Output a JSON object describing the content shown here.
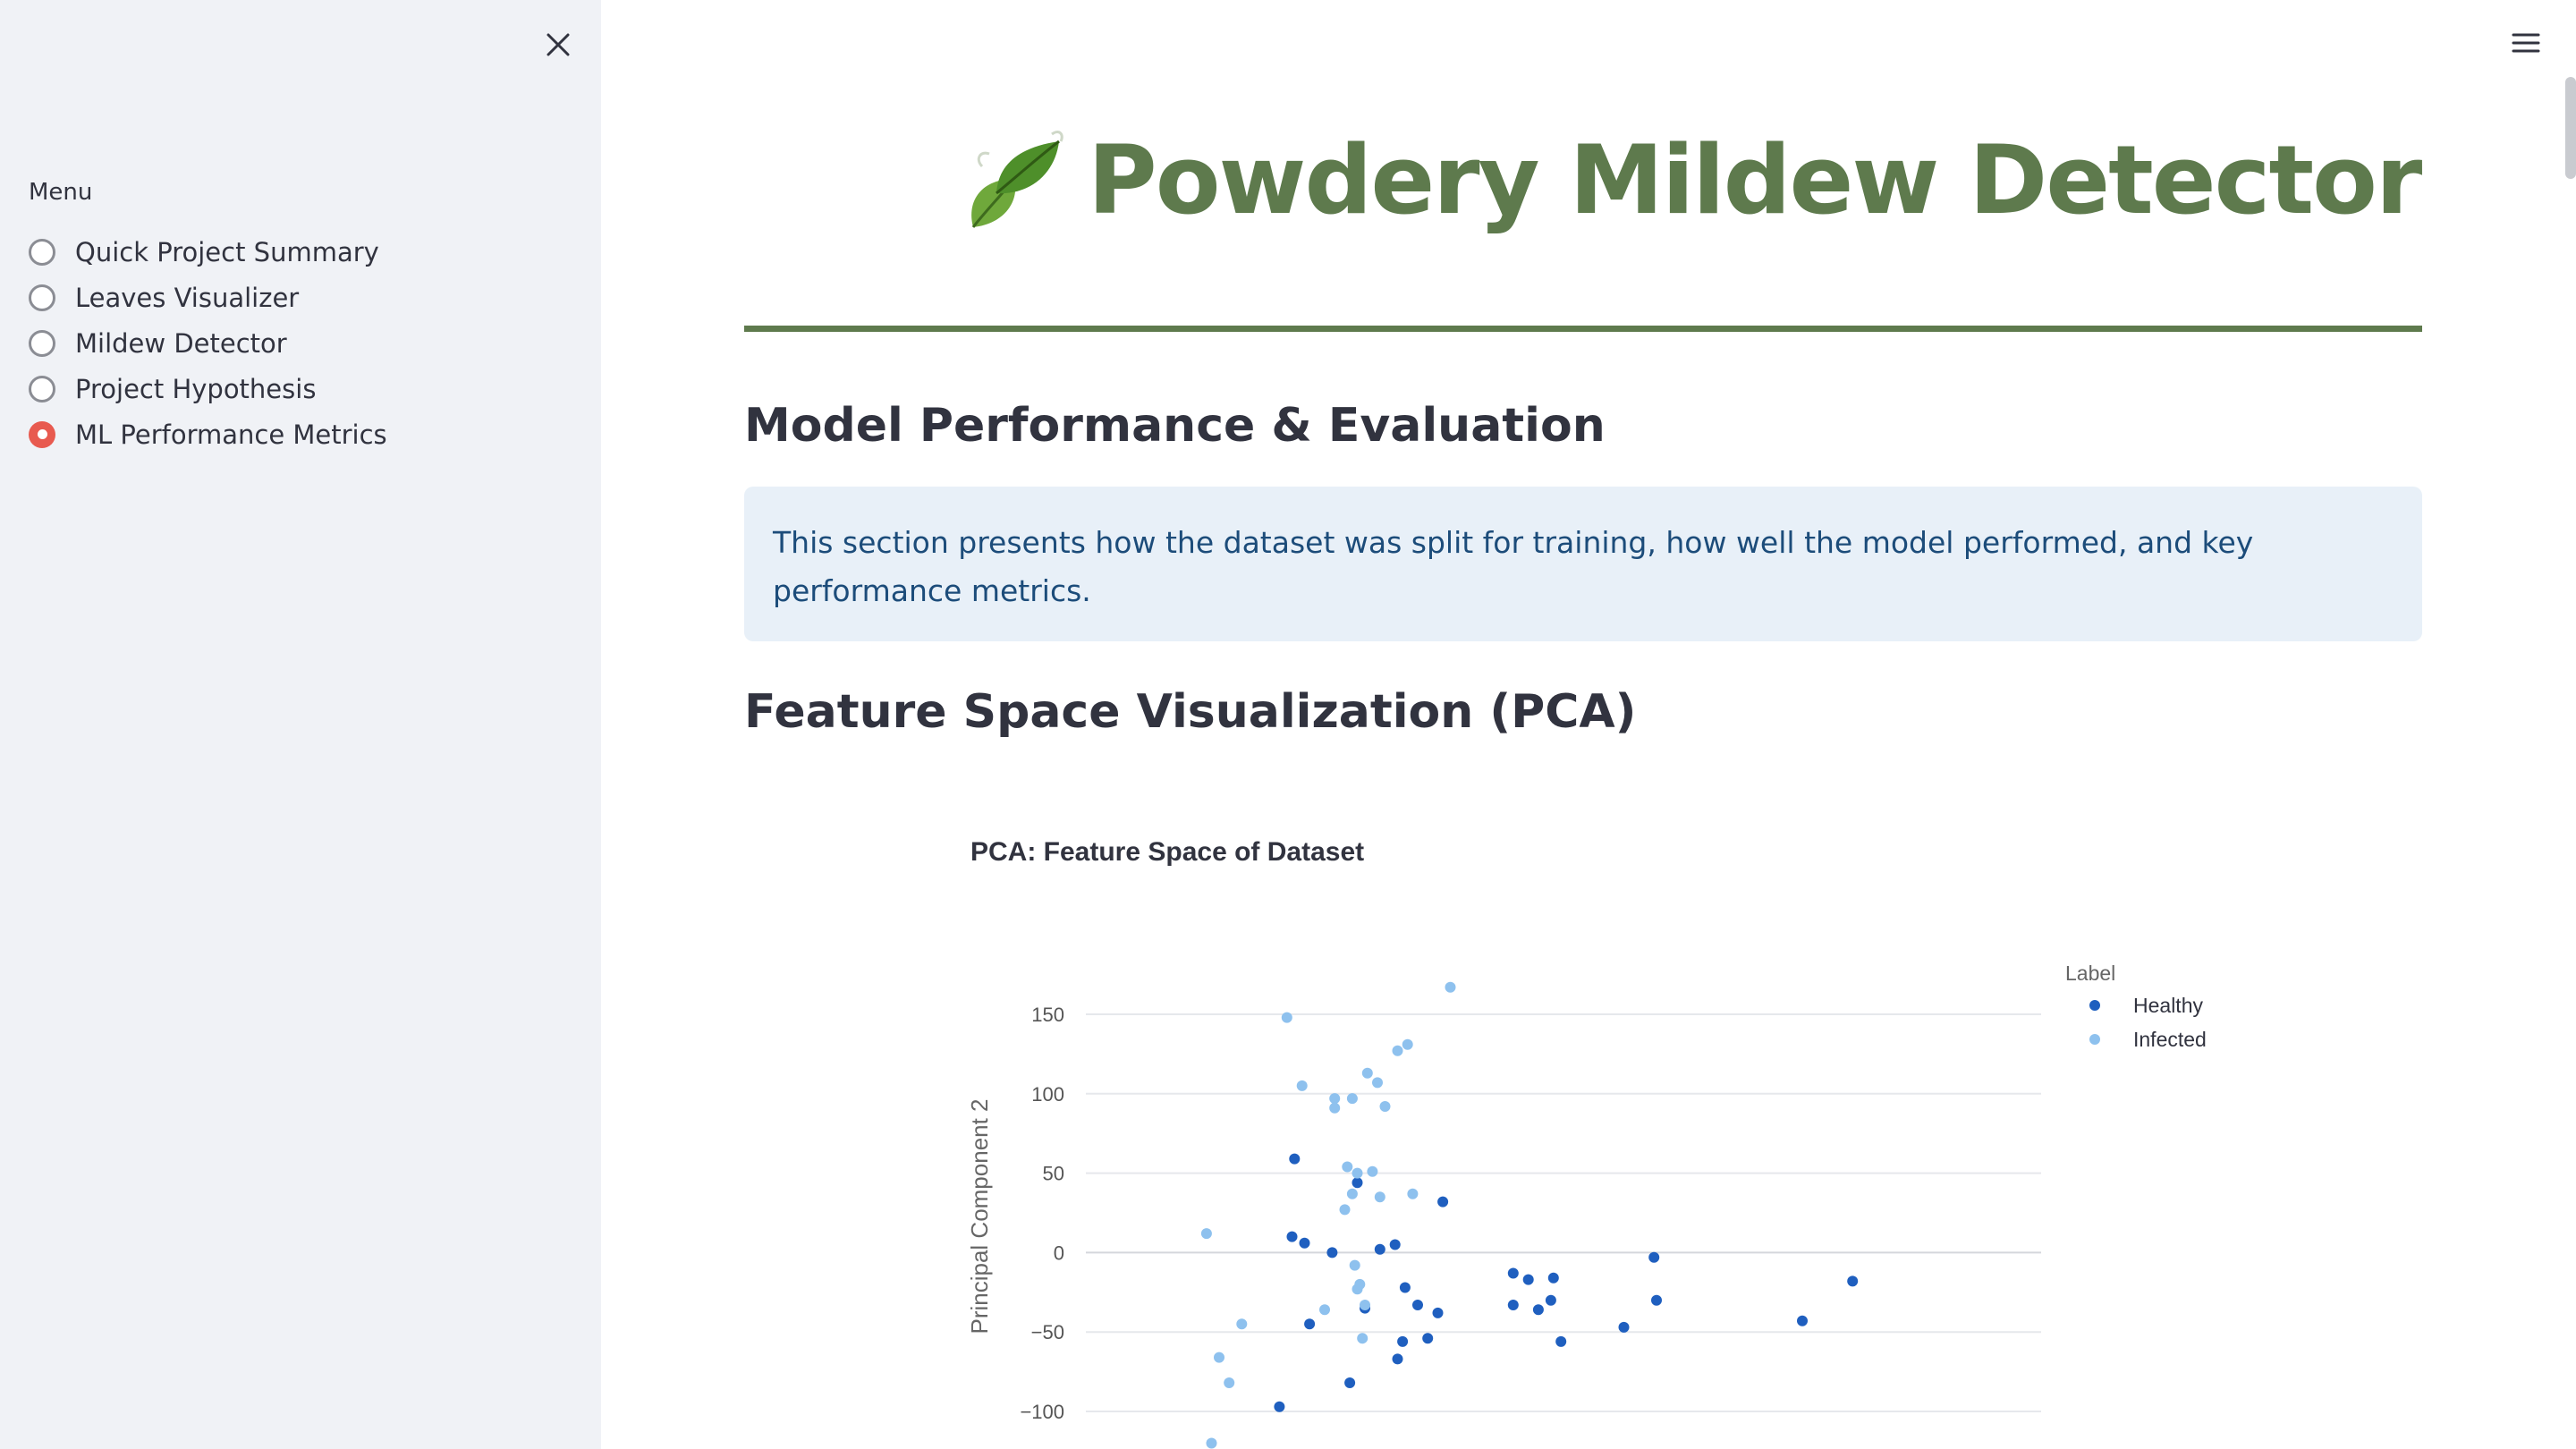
{
  "sidebar": {
    "close_label": "Close sidebar",
    "menu_label": "Menu",
    "items": [
      {
        "label": "Quick Project Summary",
        "selected": false
      },
      {
        "label": "Leaves Visualizer",
        "selected": false
      },
      {
        "label": "Mildew Detector",
        "selected": false
      },
      {
        "label": "Project Hypothesis",
        "selected": false
      },
      {
        "label": "ML Performance Metrics",
        "selected": true
      }
    ]
  },
  "header": {
    "title": "Powdery Mildew Detector",
    "icon": "leaves-icon"
  },
  "main": {
    "section1_heading": "Model Performance & Evaluation",
    "info_text": "This section presents how the dataset was split for training, how well the model performed, and key performance metrics.",
    "section2_heading": "Feature Space Visualization (PCA)"
  },
  "colors": {
    "accent_green": "#5e7a4d",
    "radio_selected": "#e85a4f",
    "healthy": "#1f5fbf",
    "infected": "#8ec1ee",
    "info_bg": "#e8f0f8",
    "info_text": "#1c4c7a"
  },
  "chart_data": {
    "type": "scatter",
    "title": "PCA: Feature Space of Dataset",
    "xlabel": "",
    "ylabel": "Principal Component 2",
    "yticks": [
      150,
      100,
      50,
      0,
      -50,
      -100
    ],
    "ytick_labels": [
      "150",
      "100",
      "50",
      "0",
      "−50",
      "−100"
    ],
    "ylim": [
      -120,
      170
    ],
    "xlim": [
      -190,
      190
    ],
    "grid": true,
    "legend_title": "Label",
    "legend_position": "top-right",
    "series": [
      {
        "name": "Healthy",
        "color": "#1f5fbf",
        "points": [
          [
            -107,
            59
          ],
          [
            -108,
            10
          ],
          [
            -103,
            6
          ],
          [
            -92,
            0
          ],
          [
            -101,
            -45
          ],
          [
            -85,
            -82
          ],
          [
            -113,
            -97
          ],
          [
            -82,
            44
          ],
          [
            -73,
            2
          ],
          [
            -67,
            5
          ],
          [
            -63,
            -22
          ],
          [
            -66,
            -67
          ],
          [
            -64,
            -56
          ],
          [
            -58,
            -33
          ],
          [
            -54,
            -54
          ],
          [
            -50,
            -38
          ],
          [
            -79,
            -35
          ],
          [
            -48,
            32
          ],
          [
            -20,
            -13
          ],
          [
            -20,
            -33
          ],
          [
            -14,
            -17
          ],
          [
            -10,
            -36
          ],
          [
            -4,
            -16
          ],
          [
            -5,
            -30
          ],
          [
            -1,
            -56
          ],
          [
            24,
            -47
          ],
          [
            36,
            -3
          ],
          [
            37,
            -30
          ],
          [
            95,
            -43
          ],
          [
            115,
            -18
          ]
        ]
      },
      {
        "name": "Infected",
        "color": "#8ec1ee",
        "points": [
          [
            -110,
            148
          ],
          [
            -104,
            105
          ],
          [
            -91,
            97
          ],
          [
            -84,
            97
          ],
          [
            -91,
            91
          ],
          [
            -78,
            113
          ],
          [
            -74,
            107
          ],
          [
            -71,
            92
          ],
          [
            -66,
            127
          ],
          [
            -62,
            131
          ],
          [
            -45,
            167
          ],
          [
            -60,
            37
          ],
          [
            -86,
            54
          ],
          [
            -82,
            50
          ],
          [
            -76,
            51
          ],
          [
            -84,
            37
          ],
          [
            -87,
            27
          ],
          [
            -73,
            35
          ],
          [
            -142,
            12
          ],
          [
            -128,
            -45
          ],
          [
            -137,
            -66
          ],
          [
            -133,
            -82
          ],
          [
            -95,
            -36
          ],
          [
            -83,
            -8
          ],
          [
            -82,
            -23
          ],
          [
            -81,
            -20
          ],
          [
            -79,
            -33
          ],
          [
            -80,
            -54
          ],
          [
            -140,
            -120
          ]
        ]
      }
    ]
  }
}
